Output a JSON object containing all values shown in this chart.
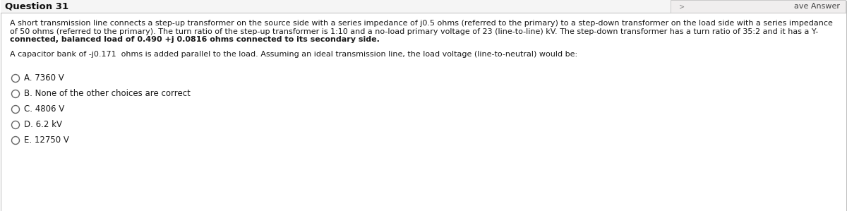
{
  "title": "Question 31",
  "save_answer_btn": "ave Answer",
  "paragraph1_line1": "A short transmission line connects a step-up transformer on the source side with a series impedance of j0.5 ohms (referred to the primary) to a step-down transformer on the load side with a series impedance",
  "paragraph1_line2": "of 50 ohms (referred to the primary). The turn ratio of the step-up transformer is 1:10 and a no-load primary voltage of 23 (line-to-line) kV. The step-down transformer has a turn ratio of 35:2 and it has a Y-",
  "paragraph1_line3": "connected, balanced load of 0.490 +j 0.0816 ohms connected to its secondary side.",
  "paragraph2": "A capacitor bank of -j0.171  ohms is added parallel to the load. Assuming an ideal transmission line, the load voltage (line-to-neutral) would be:",
  "options": [
    "A. 7360 V",
    "B. None of the other choices are correct",
    "C. 4806 V",
    "D. 6.2 kV",
    "E. 12750 V"
  ],
  "bg_color": "#ffffff",
  "title_bg_color": "#f5f5f5",
  "title_font_size": 9.5,
  "body_font_size": 8.0,
  "option_font_size": 8.5,
  "border_color": "#bbbbbb",
  "button_bg_color": "#f0eeee",
  "circle_color": "#666666",
  "text_color": "#1a1a1a",
  "button_text_color": "#444444",
  "title_color": "#111111"
}
